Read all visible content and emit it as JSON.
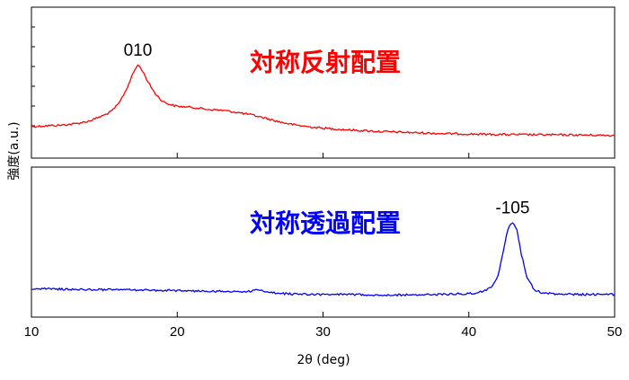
{
  "chart_data": {
    "type": "line",
    "xlabel": "2θ (deg)",
    "ylabel": "強度(a.u.)",
    "xlim": [
      10,
      50
    ],
    "x_ticks": [
      10,
      20,
      30,
      40,
      50
    ],
    "panels": [
      {
        "title": "対称反射配置",
        "title_color": "#ff0000",
        "line_color": "#ff0000",
        "annotation": "010",
        "annotation_x": 17.3,
        "ylim": [
          0,
          100
        ],
        "points": [
          [
            10,
            12
          ],
          [
            11,
            13
          ],
          [
            12,
            13.5
          ],
          [
            13,
            15
          ],
          [
            14,
            18
          ],
          [
            15,
            24
          ],
          [
            15.5,
            28
          ],
          [
            16,
            36
          ],
          [
            16.5,
            50
          ],
          [
            17,
            68
          ],
          [
            17.3,
            76
          ],
          [
            17.6,
            70
          ],
          [
            18,
            58
          ],
          [
            18.5,
            46
          ],
          [
            19,
            38
          ],
          [
            19.5,
            35
          ],
          [
            20,
            33
          ],
          [
            21,
            32
          ],
          [
            22,
            30
          ],
          [
            23,
            29
          ],
          [
            24,
            27
          ],
          [
            25,
            24.5
          ],
          [
            26,
            21
          ],
          [
            27,
            17
          ],
          [
            28,
            14
          ],
          [
            29,
            12
          ],
          [
            30,
            10.5
          ],
          [
            32,
            8.5
          ],
          [
            34,
            7
          ],
          [
            36,
            6
          ],
          [
            38,
            5
          ],
          [
            40,
            4.5
          ],
          [
            42,
            4
          ],
          [
            44,
            3.8
          ],
          [
            46,
            3.6
          ],
          [
            48,
            3.4
          ],
          [
            50,
            3
          ]
        ]
      },
      {
        "title": "対称透過配置",
        "title_color": "#0000ff",
        "line_color": "#0000ff",
        "annotation": "-105",
        "annotation_x": 43,
        "ylim": [
          0,
          100
        ],
        "points": [
          [
            10,
            9
          ],
          [
            12,
            8.5
          ],
          [
            14,
            8
          ],
          [
            16,
            8
          ],
          [
            18,
            7.5
          ],
          [
            20,
            7
          ],
          [
            22,
            6.5
          ],
          [
            24,
            6
          ],
          [
            25,
            6
          ],
          [
            25.6,
            8
          ],
          [
            26,
            6.5
          ],
          [
            27,
            4
          ],
          [
            28,
            3.5
          ],
          [
            30,
            3
          ],
          [
            32,
            3
          ],
          [
            34,
            2.5
          ],
          [
            36,
            2.5
          ],
          [
            38,
            3
          ],
          [
            40,
            4
          ],
          [
            40.5,
            4.5
          ],
          [
            41,
            6
          ],
          [
            41.5,
            10
          ],
          [
            42,
            22
          ],
          [
            42.4,
            50
          ],
          [
            42.7,
            72
          ],
          [
            43,
            78
          ],
          [
            43.3,
            70
          ],
          [
            43.6,
            45
          ],
          [
            44,
            20
          ],
          [
            44.5,
            8
          ],
          [
            45,
            4.5
          ],
          [
            46,
            3.5
          ],
          [
            48,
            3
          ],
          [
            50,
            3
          ]
        ]
      }
    ]
  }
}
